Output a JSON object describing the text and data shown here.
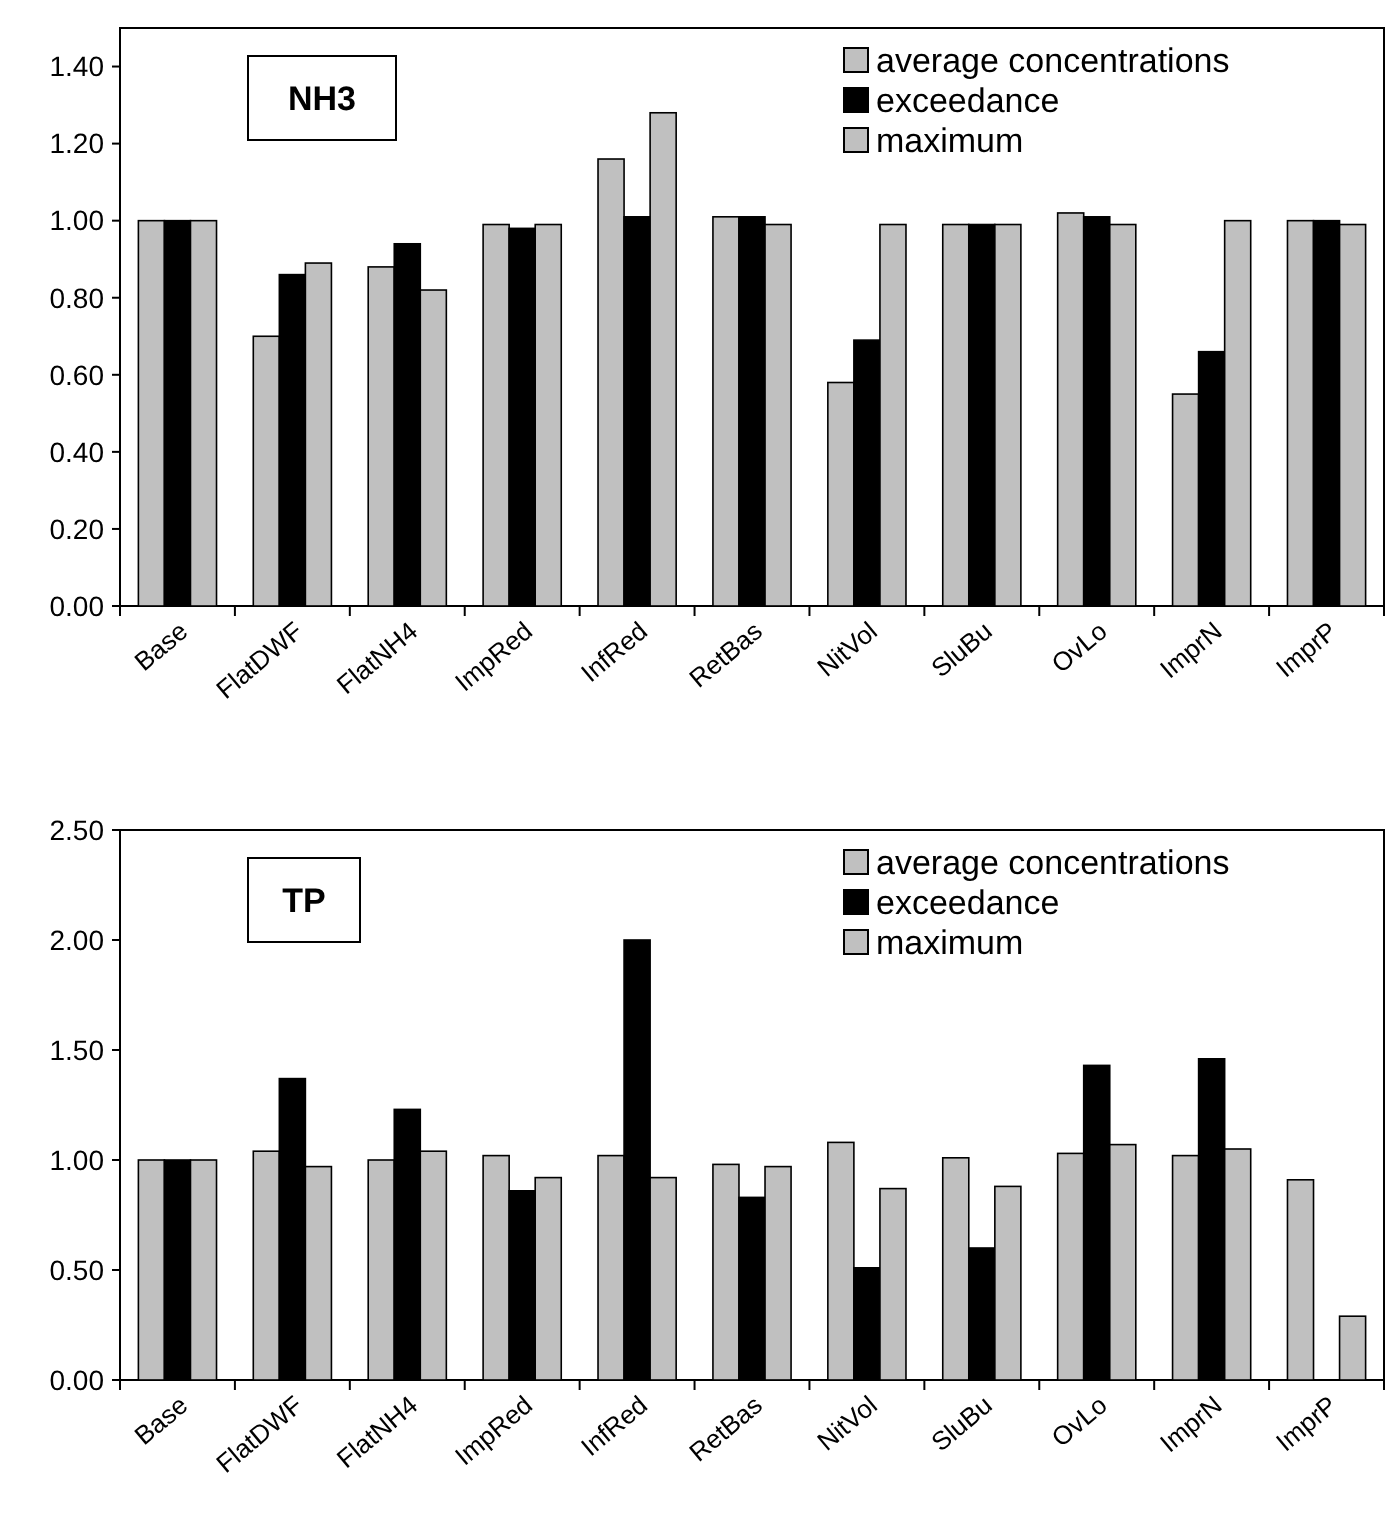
{
  "chart_data": [
    {
      "type": "bar",
      "title": "NH3",
      "categories": [
        "Base",
        "FlatDWF",
        "FlatNH4",
        "ImpRed",
        "InfRed",
        "RetBas",
        "NitVol",
        "SluBu",
        "OvLo",
        "ImprN",
        "ImprP"
      ],
      "series": [
        {
          "name": "average concentrations",
          "color": "#c0c0c0",
          "values": [
            1.0,
            0.7,
            0.88,
            0.99,
            1.16,
            1.01,
            0.58,
            0.99,
            1.02,
            0.55,
            1.0
          ]
        },
        {
          "name": "exceedance",
          "color": "#000000",
          "values": [
            1.0,
            0.86,
            0.94,
            0.98,
            1.01,
            1.01,
            0.69,
            0.99,
            1.01,
            0.66,
            1.0
          ]
        },
        {
          "name": "maximum",
          "color": "#c0c0c0",
          "values": [
            1.0,
            0.89,
            0.82,
            0.99,
            1.28,
            0.99,
            0.99,
            0.99,
            0.99,
            1.0,
            0.99
          ]
        }
      ],
      "ylim": [
        0,
        1.5
      ],
      "yticks": [
        {
          "value": 0,
          "label": "0.00"
        },
        {
          "value": 0.2,
          "label": "0.20"
        },
        {
          "value": 0.4,
          "label": "0.40"
        },
        {
          "value": 0.6,
          "label": "0.60"
        },
        {
          "value": 0.8,
          "label": "0.80"
        },
        {
          "value": 1.0,
          "label": "1.00"
        },
        {
          "value": 1.2,
          "label": "1.20"
        },
        {
          "value": 1.4,
          "label": "1.40"
        }
      ],
      "grid": false,
      "legend": "top right"
    },
    {
      "type": "bar",
      "title": "TP",
      "categories": [
        "Base",
        "FlatDWF",
        "FlatNH4",
        "ImpRed",
        "InfRed",
        "RetBas",
        "NitVol",
        "SluBu",
        "OvLo",
        "ImprN",
        "ImprP"
      ],
      "series": [
        {
          "name": "average concentrations",
          "color": "#c0c0c0",
          "values": [
            1.0,
            1.04,
            1.0,
            1.02,
            1.02,
            0.98,
            1.08,
            1.01,
            1.03,
            1.02,
            0.91
          ]
        },
        {
          "name": "exceedance",
          "color": "#000000",
          "values": [
            1.0,
            1.37,
            1.23,
            0.86,
            2.0,
            0.83,
            0.51,
            0.6,
            1.43,
            1.46,
            null
          ]
        },
        {
          "name": "maximum",
          "color": "#c0c0c0",
          "values": [
            1.0,
            0.97,
            1.04,
            0.92,
            0.92,
            0.97,
            0.87,
            0.88,
            1.07,
            1.05,
            0.29
          ]
        }
      ],
      "ylim": [
        0,
        2.5
      ],
      "yticks": [
        {
          "value": 0,
          "label": "0.00"
        },
        {
          "value": 0.5,
          "label": "0.50"
        },
        {
          "value": 1.0,
          "label": "1.00"
        },
        {
          "value": 1.5,
          "label": "1.50"
        },
        {
          "value": 2.0,
          "label": "2.00"
        },
        {
          "value": 2.5,
          "label": "2.50"
        }
      ],
      "grid": false,
      "legend": "top right"
    }
  ]
}
